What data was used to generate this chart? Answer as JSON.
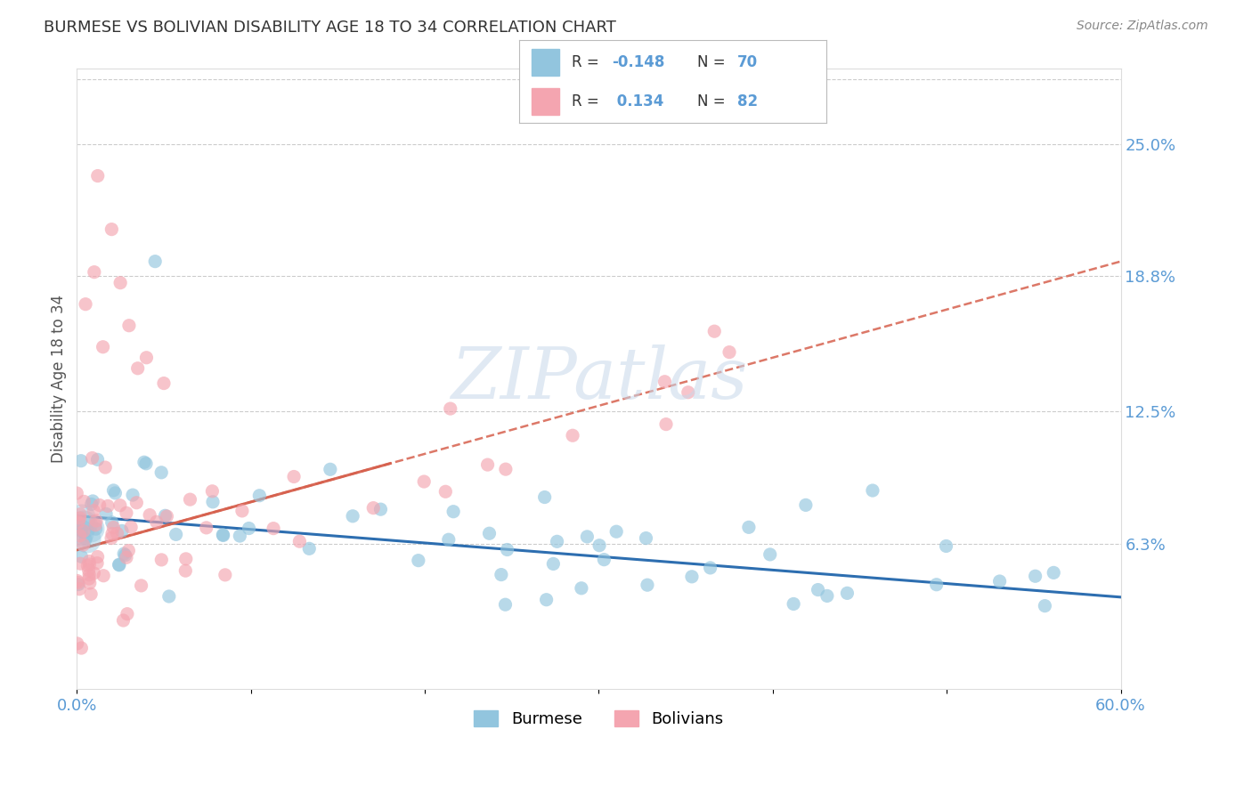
{
  "title": "BURMESE VS BOLIVIAN DISABILITY AGE 18 TO 34 CORRELATION CHART",
  "source_text": "Source: ZipAtlas.com",
  "ylabel": "Disability Age 18 to 34",
  "xlim": [
    0.0,
    0.6
  ],
  "ylim": [
    -0.005,
    0.285
  ],
  "xtick_labels": [
    "0.0%",
    "60.0%"
  ],
  "xtick_values": [
    0.0,
    0.6
  ],
  "ytick_labels": [
    "6.3%",
    "12.5%",
    "18.8%",
    "25.0%"
  ],
  "ytick_values": [
    0.063,
    0.125,
    0.188,
    0.25
  ],
  "burmese_color": "#92c5de",
  "bolivian_color": "#f4a5b0",
  "burmese_trend_color": "#2166ac",
  "bolivian_trend_color": "#d6604d",
  "legend_labels": [
    "Burmese",
    "Bolivians"
  ],
  "watermark": "ZIPatlas",
  "title_color": "#333333",
  "tick_label_color": "#5b9bd5",
  "grid_color": "#cccccc",
  "ylabel_color": "#555555",
  "burmese_trend_x0": 0.0,
  "burmese_trend_y0": 0.076,
  "burmese_trend_x1": 0.6,
  "burmese_trend_y1": 0.038,
  "bolivian_trend_x0": 0.0,
  "bolivian_trend_y0": 0.06,
  "bolivian_trend_x1": 0.6,
  "bolivian_trend_y1": 0.195
}
